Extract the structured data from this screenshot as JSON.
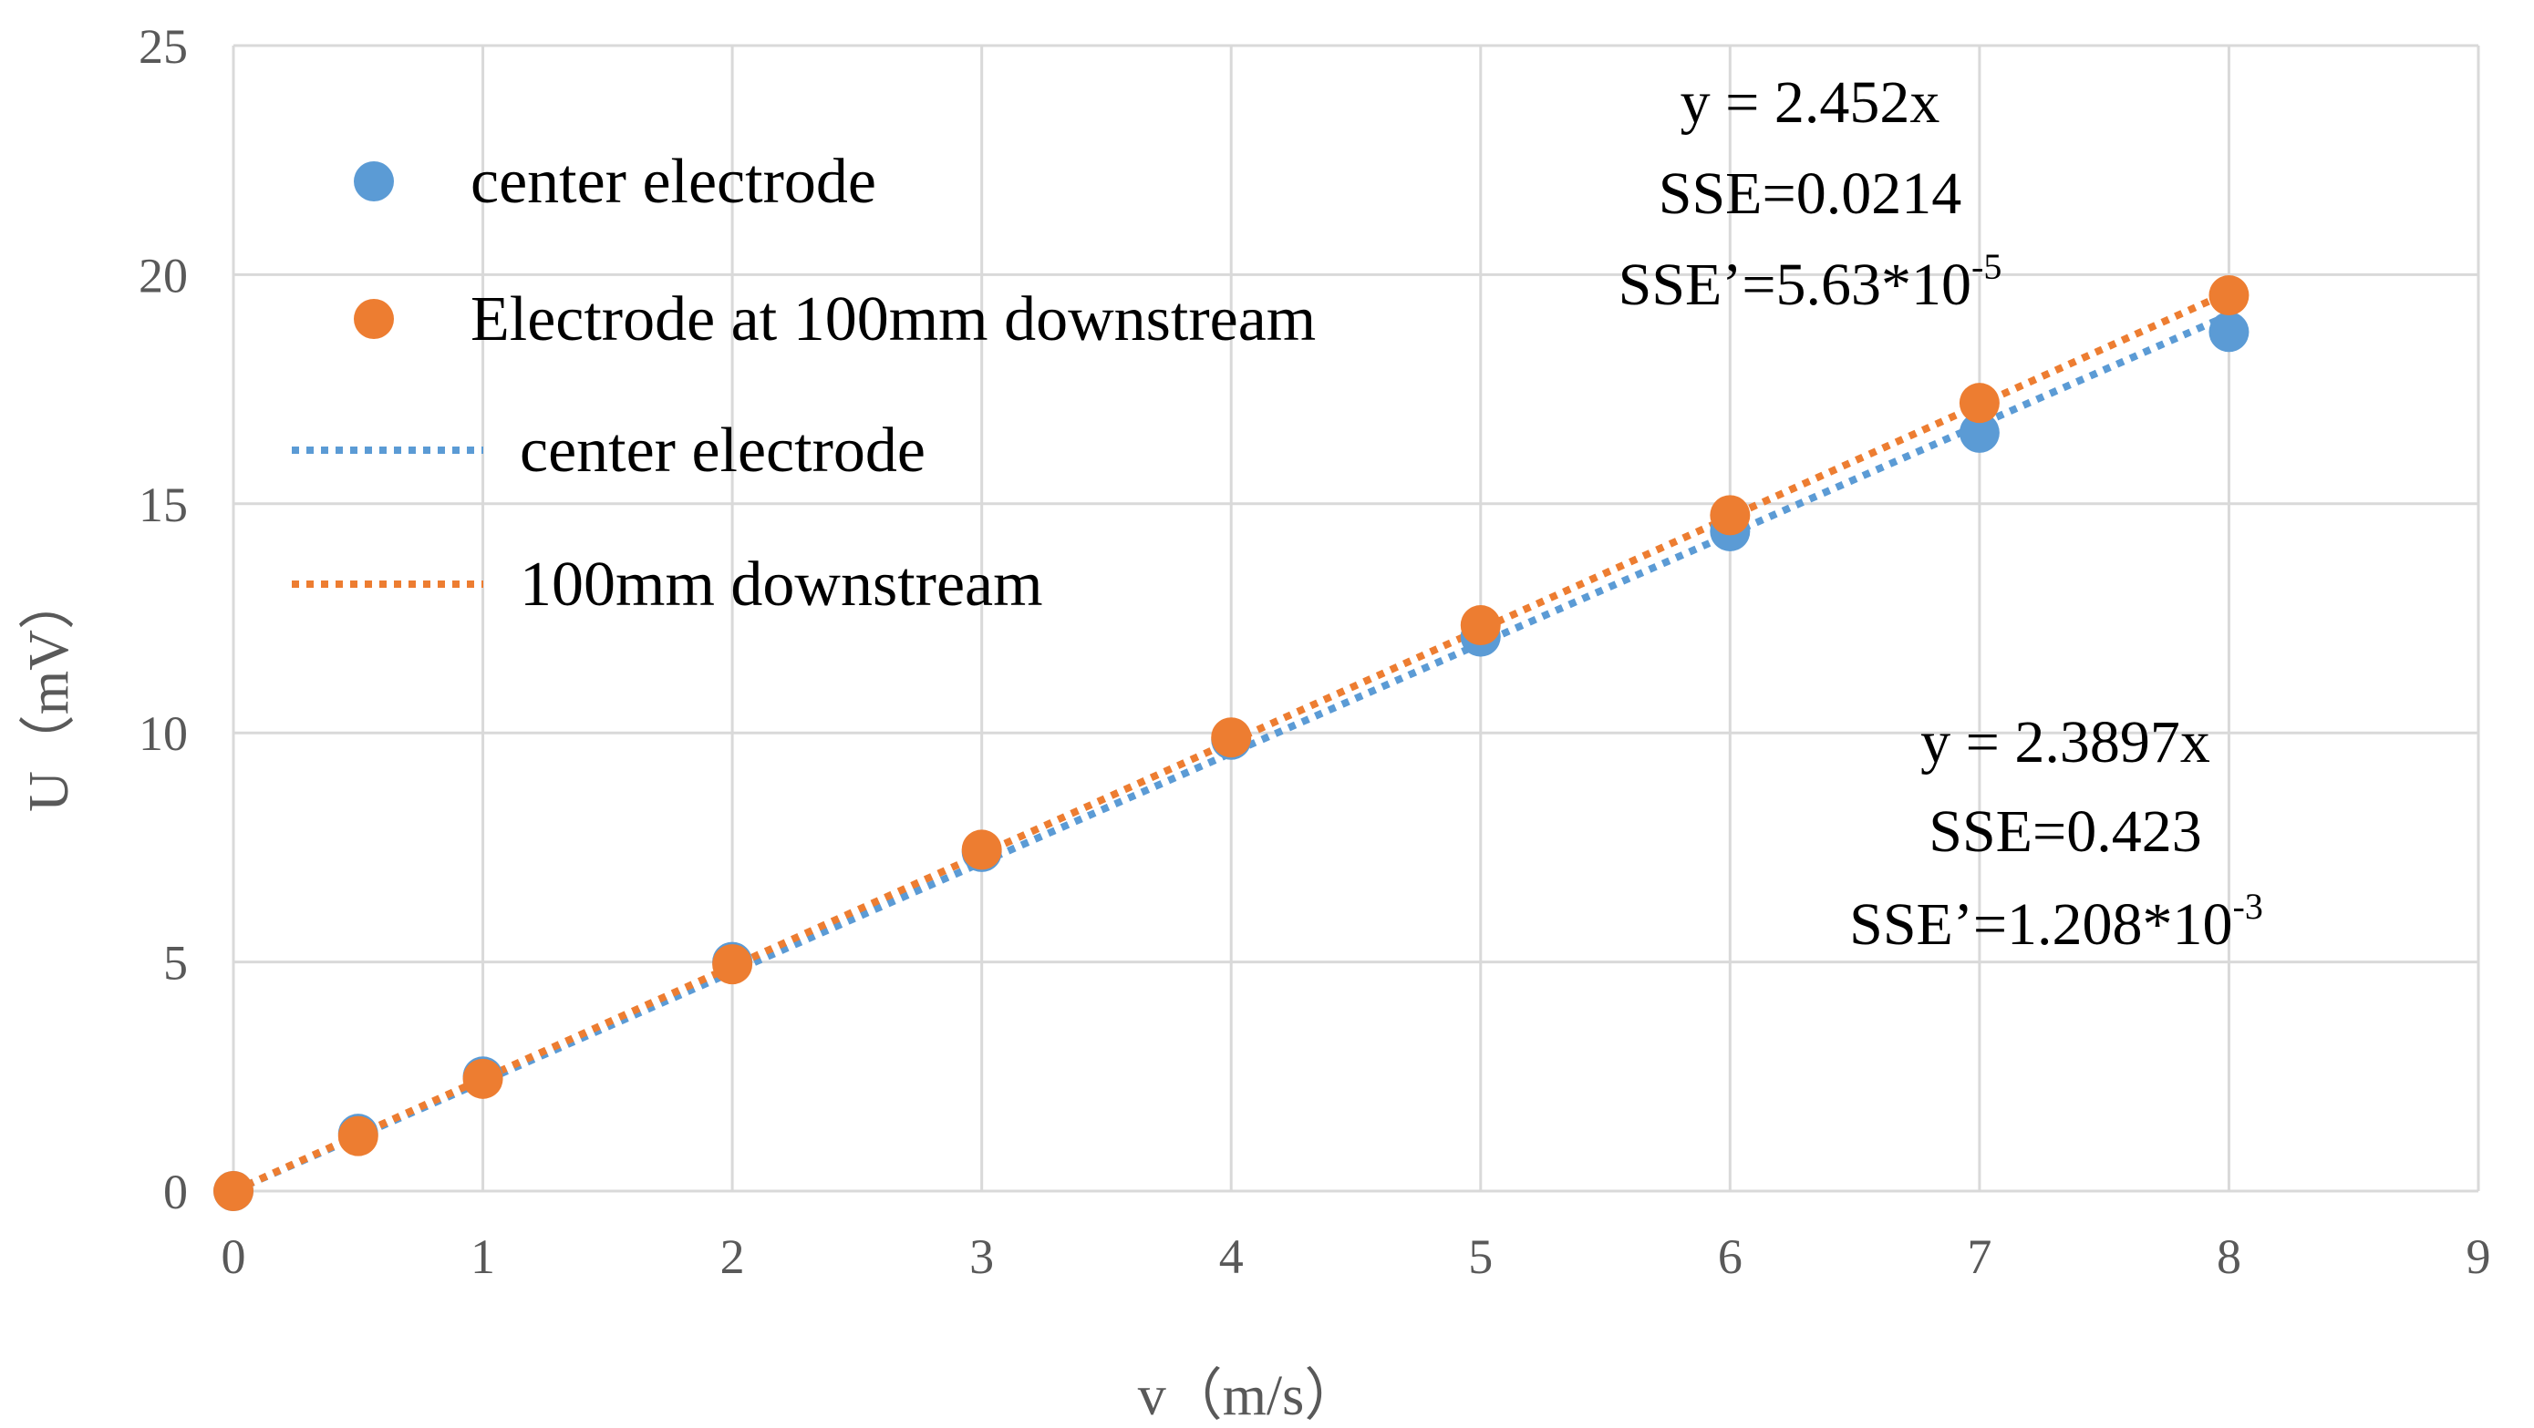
{
  "chart_data": {
    "type": "scatter",
    "title": "",
    "xlabel": "v（m/s）",
    "ylabel": "U（mV）",
    "xlim": [
      0,
      9
    ],
    "ylim": [
      0,
      25
    ],
    "xticks": [
      "0",
      "1",
      "2",
      "3",
      "4",
      "5",
      "6",
      "7",
      "8",
      "9"
    ],
    "yticks": [
      "0",
      "5",
      "10",
      "15",
      "20",
      "25"
    ],
    "grid": true,
    "series": [
      {
        "name": "center electrode",
        "kind": "points",
        "color": "#5B9BD5",
        "x": [
          0,
          0.5,
          1,
          2,
          3,
          4,
          5,
          6,
          7,
          8
        ],
        "y": [
          0,
          1.25,
          2.5,
          5.0,
          7.4,
          9.85,
          12.1,
          14.4,
          16.55,
          18.75
        ]
      },
      {
        "name": "Electrode at 100mm downstream",
        "kind": "points",
        "color": "#ED7D31",
        "x": [
          0,
          0.5,
          1,
          2,
          3,
          4,
          5,
          6,
          7,
          8
        ],
        "y": [
          0,
          1.2,
          2.45,
          4.95,
          7.45,
          9.9,
          12.35,
          14.75,
          17.2,
          19.55
        ]
      },
      {
        "name": "center electrode",
        "kind": "trendline",
        "color": "#5B9BD5",
        "slope": 2.3897,
        "x_range": [
          0,
          8
        ]
      },
      {
        "name": "100mm downstream",
        "kind": "trendline",
        "color": "#ED7D31",
        "slope": 2.452,
        "x_range": [
          0,
          8
        ]
      }
    ],
    "legend": {
      "position": "top-left",
      "entries": [
        "center electrode",
        "Electrode at 100mm downstream",
        "center electrode",
        "100mm downstream"
      ]
    },
    "annotations": {
      "downstream_fit": {
        "equation": "y = 2.452x",
        "sse": "SSE=0.0214",
        "sse_prime_base": "SSE’=5.63*10",
        "sse_prime_exp": "-5"
      },
      "center_fit": {
        "equation": "y = 2.3897x",
        "sse": "SSE=0.423",
        "sse_prime_base": "SSE’=1.208*10",
        "sse_prime_exp": "-3"
      }
    }
  }
}
